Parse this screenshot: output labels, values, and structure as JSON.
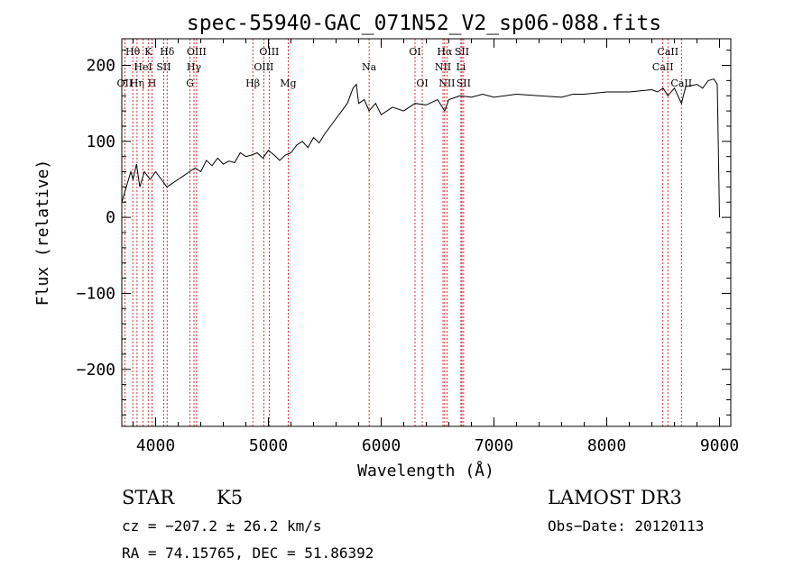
{
  "chart_data": {
    "type": "line",
    "title": "spec-55940-GAC_071N52_V2_sp06-088.fits",
    "xlabel": "Wavelength (Å)",
    "ylabel": "Flux (relative)",
    "xlim": [
      3700,
      9100
    ],
    "ylim": [
      -275,
      235
    ],
    "xticks": [
      4000,
      5000,
      6000,
      7000,
      8000,
      9000
    ],
    "xtick_labels": [
      "4000",
      "5000",
      "6000",
      "7000",
      "8000",
      "9000"
    ],
    "yticks": [
      -200,
      -100,
      0,
      100,
      200
    ],
    "ytick_labels": [
      "−200",
      "−100",
      "0",
      "100",
      "200"
    ],
    "series": [
      {
        "name": "spectrum",
        "x": [
          3700,
          3740,
          3780,
          3800,
          3830,
          3860,
          3900,
          3950,
          4000,
          4050,
          4100,
          4150,
          4200,
          4250,
          4300,
          4350,
          4400,
          4450,
          4500,
          4550,
          4600,
          4650,
          4700,
          4750,
          4800,
          4850,
          4900,
          4950,
          5000,
          5050,
          5100,
          5150,
          5200,
          5250,
          5300,
          5350,
          5400,
          5450,
          5500,
          5550,
          5600,
          5650,
          5700,
          5750,
          5780,
          5800,
          5850,
          5893,
          5950,
          6000,
          6100,
          6200,
          6300,
          6400,
          6500,
          6563,
          6600,
          6700,
          6800,
          6900,
          7000,
          7200,
          7400,
          7600,
          7650,
          7700,
          7800,
          8000,
          8200,
          8400,
          8450,
          8500,
          8542,
          8600,
          8662,
          8700,
          8800,
          8850,
          8900,
          8950,
          8980,
          9000
        ],
        "values": [
          20,
          40,
          60,
          50,
          70,
          40,
          60,
          50,
          60,
          50,
          40,
          45,
          50,
          55,
          60,
          65,
          60,
          75,
          68,
          78,
          70,
          74,
          72,
          85,
          80,
          82,
          85,
          78,
          88,
          82,
          75,
          82,
          85,
          95,
          100,
          92,
          105,
          98,
          110,
          120,
          130,
          140,
          150,
          170,
          175,
          150,
          155,
          140,
          150,
          135,
          145,
          140,
          150,
          148,
          155,
          140,
          155,
          160,
          158,
          162,
          158,
          162,
          160,
          158,
          160,
          162,
          162,
          165,
          165,
          168,
          165,
          170,
          160,
          170,
          150,
          172,
          175,
          170,
          180,
          182,
          175,
          0
        ]
      }
    ],
    "line_markers": [
      {
        "label": "OII",
        "wavelength": 3727,
        "row": 2
      },
      {
        "label": "Hθ",
        "wavelength": 3797,
        "row": 0
      },
      {
        "label": "Hη",
        "wavelength": 3835,
        "row": 2
      },
      {
        "label": "HeI",
        "wavelength": 3889,
        "row": 1
      },
      {
        "label": "K",
        "wavelength": 3934,
        "row": 0
      },
      {
        "label": "H",
        "wavelength": 3968,
        "row": 2
      },
      {
        "label": "SII",
        "wavelength": 4072,
        "row": 1
      },
      {
        "label": "Hδ",
        "wavelength": 4102,
        "row": 0
      },
      {
        "label": "G",
        "wavelength": 4305,
        "row": 2
      },
      {
        "label": "Hγ",
        "wavelength": 4340,
        "row": 1
      },
      {
        "label": "OIII",
        "wavelength": 4363,
        "row": 0
      },
      {
        "label": "Hβ",
        "wavelength": 4861,
        "row": 2
      },
      {
        "label": "OIII",
        "wavelength": 4959,
        "row": 1
      },
      {
        "label": "OIII",
        "wavelength": 5007,
        "row": 0
      },
      {
        "label": "Mg",
        "wavelength": 5175,
        "row": 2
      },
      {
        "label": "Na",
        "wavelength": 5893,
        "row": 1
      },
      {
        "label": "OI",
        "wavelength": 6300,
        "row": 0
      },
      {
        "label": "OI",
        "wavelength": 6364,
        "row": 2
      },
      {
        "label": "NII",
        "wavelength": 6548,
        "row": 1
      },
      {
        "label": "Hα",
        "wavelength": 6563,
        "row": 0
      },
      {
        "label": "NII",
        "wavelength": 6583,
        "row": 2
      },
      {
        "label": "Li",
        "wavelength": 6707,
        "row": 1
      },
      {
        "label": "SII",
        "wavelength": 6716,
        "row": 0
      },
      {
        "label": "SII",
        "wavelength": 6731,
        "row": 2
      },
      {
        "label": "CaII",
        "wavelength": 8498,
        "row": 1
      },
      {
        "label": "CaII",
        "wavelength": 8542,
        "row": 0
      },
      {
        "label": "CaII",
        "wavelength": 8662,
        "row": 2
      }
    ]
  },
  "info": {
    "object_class": "STAR",
    "subclass": "K5",
    "survey": "LAMOST DR3",
    "redshift": "cz = −207.2 ± 26.2 km/s",
    "obs_date": "Obs−Date: 20120113",
    "coordinates": "RA =  74.15765, DEC =  51.86392"
  }
}
